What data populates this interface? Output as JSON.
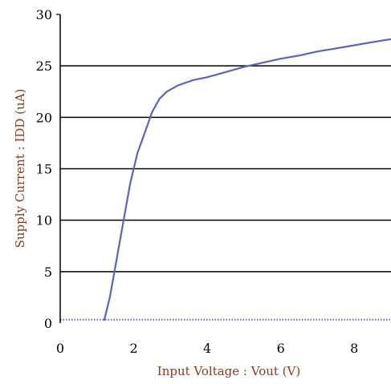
{
  "chart_data": {
    "type": "line",
    "title": "",
    "xlabel": "Input Voltage : Vout (V)",
    "ylabel": "Supply Current : IDD (uA)",
    "xlim": [
      0,
      9
    ],
    "ylim": [
      0,
      30
    ],
    "xticks": [
      0,
      2,
      4,
      6,
      8
    ],
    "yticks": [
      0,
      5,
      10,
      15,
      20,
      25,
      30
    ],
    "xtick_labels": [
      "0",
      "2",
      "4",
      "6",
      "8"
    ],
    "ytick_labels": [
      "0",
      "5",
      "10",
      "15",
      "20",
      "25",
      "30"
    ],
    "grid": "horizontal",
    "series": [
      {
        "x": [
          1.2,
          1.35,
          1.5,
          1.7,
          1.9,
          2.1,
          2.3,
          2.5,
          2.7,
          2.9,
          3.2,
          3.6,
          4.0,
          4.5,
          5.0,
          5.5,
          6.0,
          6.5,
          7.0,
          7.5,
          8.0,
          8.5,
          9.0
        ],
        "values": [
          0.3,
          2.5,
          5.5,
          9.5,
          13.5,
          16.5,
          18.5,
          20.5,
          21.8,
          22.5,
          23.1,
          23.6,
          23.9,
          24.4,
          24.9,
          25.3,
          25.7,
          26.0,
          26.4,
          26.7,
          27.0,
          27.3,
          27.6
        ],
        "color": "#5a62c8"
      }
    ],
    "baseline": {
      "from": 0,
      "to": 9,
      "value": 0.25,
      "color": "#5a62c8"
    },
    "colors": {
      "axis_title": "#8b3a1a",
      "axis": "#000000",
      "grid": "#000000"
    }
  }
}
